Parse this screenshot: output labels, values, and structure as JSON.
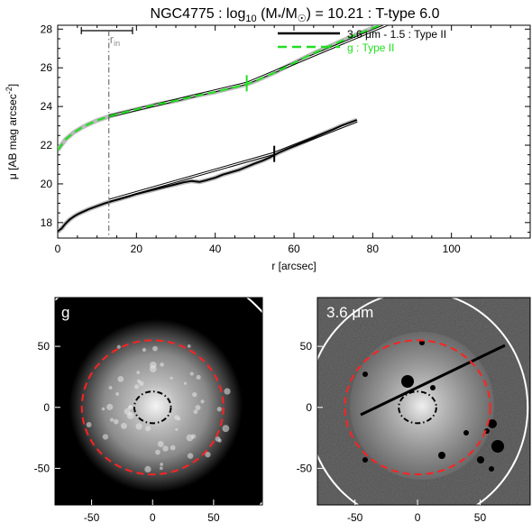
{
  "chart_data": [
    {
      "type": "line",
      "title_parts": {
        "galaxy": "NGC4775",
        "log_prefix": "log",
        "log_sub": "10",
        "mass_ratio": "(M",
        "mass_star": "*",
        "mass_over": "/M",
        "mass_sun": "☉",
        "log_value": ") = 10.21",
        "ttype": ": T-type 6.0"
      },
      "xlabel": "r [arcsec]",
      "ylabel_main": "μ [AB mag arcsec",
      "ylabel_sup": "-2",
      "ylabel_close": "]",
      "xlim": [
        0,
        120
      ],
      "ylim": [
        28.2,
        17.2
      ],
      "xticks": [
        0,
        20,
        40,
        60,
        80,
        100
      ],
      "yticks": [
        18,
        20,
        22,
        24,
        26,
        28
      ],
      "r_in_label": "r",
      "r_in_sub": "in",
      "r_in": 13,
      "r_in_bar": [
        6,
        19
      ],
      "legend_position": "top-right",
      "series": [
        {
          "name_parts": [
            "3.6 ",
            "μ",
            "m - 1.5 : Type II"
          ],
          "color": "#000000",
          "style": "solid",
          "break_r": 55,
          "break_mu": 21.55,
          "x": [
            0,
            1,
            2,
            3,
            4,
            5,
            6,
            8,
            10,
            12,
            14,
            16,
            18,
            20,
            22,
            24,
            26,
            28,
            30,
            32,
            34,
            36,
            38,
            40,
            42,
            44,
            46,
            48,
            50,
            52,
            54,
            56,
            58,
            60,
            62,
            64,
            66,
            68,
            70,
            72,
            74,
            76
          ],
          "y": [
            17.55,
            17.7,
            17.95,
            18.15,
            18.3,
            18.42,
            18.52,
            18.7,
            18.85,
            19.0,
            19.12,
            19.23,
            19.35,
            19.48,
            19.58,
            19.68,
            19.78,
            19.88,
            19.98,
            20.08,
            20.15,
            20.1,
            20.2,
            20.32,
            20.48,
            20.6,
            20.72,
            20.88,
            21.05,
            21.2,
            21.38,
            21.6,
            21.78,
            21.95,
            22.12,
            22.3,
            22.48,
            22.65,
            22.82,
            23.0,
            23.15,
            23.3
          ],
          "fit_inner": {
            "x": [
              13,
              55
            ],
            "y": [
              19.15,
              21.58
            ]
          },
          "fit_outer": {
            "x": [
              55,
              76
            ],
            "y": [
              21.58,
              23.25
            ]
          }
        },
        {
          "name_parts": [
            "g : Type II"
          ],
          "color": "#22dd22",
          "style": "dashed",
          "break_r": 48,
          "break_mu": 25.2,
          "x": [
            0,
            2,
            4,
            6,
            8,
            10,
            12,
            14,
            16,
            18,
            20,
            25,
            30,
            35,
            40,
            45,
            48,
            50,
            55,
            60,
            65,
            70,
            75,
            80,
            83
          ],
          "y": [
            21.75,
            22.3,
            22.65,
            22.9,
            23.1,
            23.28,
            23.42,
            23.55,
            23.65,
            23.75,
            23.85,
            24.1,
            24.3,
            24.55,
            24.75,
            25.0,
            25.15,
            25.3,
            25.75,
            26.25,
            26.75,
            27.2,
            27.65,
            28.05,
            28.3
          ],
          "fit_inner": {
            "x": [
              13,
              48
            ],
            "y": [
              23.5,
              25.2
            ]
          },
          "fit_outer": {
            "x": [
              48,
              85
            ],
            "y": [
              25.2,
              28.35
            ]
          }
        }
      ]
    },
    {
      "type": "image",
      "panel_label": "g",
      "xticks": [
        -50,
        0,
        50
      ],
      "yticks": [
        50,
        0,
        -50
      ],
      "xlim": [
        -80,
        90
      ],
      "ylim": [
        -80,
        90
      ],
      "center": [
        0,
        0
      ],
      "ellipses": [
        {
          "color": "#ff2222",
          "style": "dashed",
          "rx": 58,
          "ry": 55
        },
        {
          "color": "#000000",
          "style": "dashdot",
          "rx": 15,
          "ry": 13
        },
        {
          "color": "#ffffff",
          "style": "solid",
          "rx": 120,
          "ry": 118
        }
      ]
    },
    {
      "type": "image",
      "panel_label_parts": [
        "3.6 ",
        "μ",
        "m"
      ],
      "xticks": [
        -50,
        0,
        50
      ],
      "yticks": [
        50,
        0,
        -50
      ],
      "xlim": [
        -80,
        90
      ],
      "ylim": [
        -80,
        90
      ],
      "center": [
        0,
        0
      ],
      "ellipses": [
        {
          "color": "#ff2222",
          "style": "dashed",
          "rx": 58,
          "ry": 55
        },
        {
          "color": "#000000",
          "style": "dashdot",
          "rx": 15,
          "ry": 13
        },
        {
          "color": "#ffffff",
          "style": "solid",
          "rx": 88,
          "ry": 95
        }
      ]
    }
  ]
}
